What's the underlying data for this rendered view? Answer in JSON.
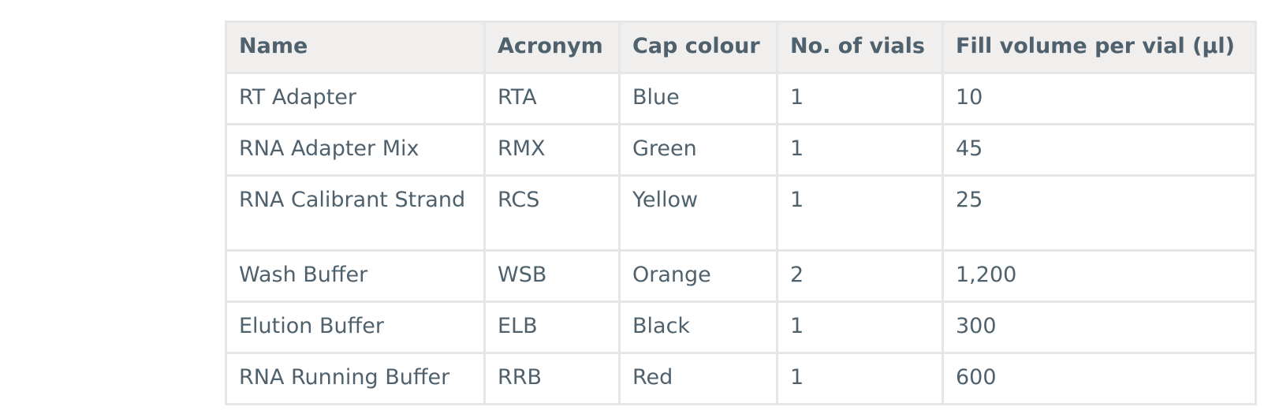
{
  "table": {
    "headers": [
      "Name",
      "Acronym",
      "Cap colour",
      "No. of vials",
      "Fill volume per vial (µl)"
    ],
    "rows": [
      [
        "RT Adapter",
        "RTA",
        "Blue",
        "1",
        "10"
      ],
      [
        "RNA Adapter Mix",
        "RMX",
        "Green",
        "1",
        "45"
      ],
      [
        "RNA Calibrant Strand",
        "RCS",
        "Yellow",
        "1",
        "25"
      ],
      [
        "Wash Buffer",
        "WSB",
        "Orange",
        "2",
        "1,200"
      ],
      [
        "Elution Buffer",
        "ELB",
        "Black",
        "1",
        "300"
      ],
      [
        "RNA Running Buffer",
        "RRB",
        "Red",
        "1",
        "600"
      ]
    ]
  },
  "colors": {
    "text": "#4f616d",
    "header_bg": "#f0efee",
    "border": "#e6e6e6"
  }
}
